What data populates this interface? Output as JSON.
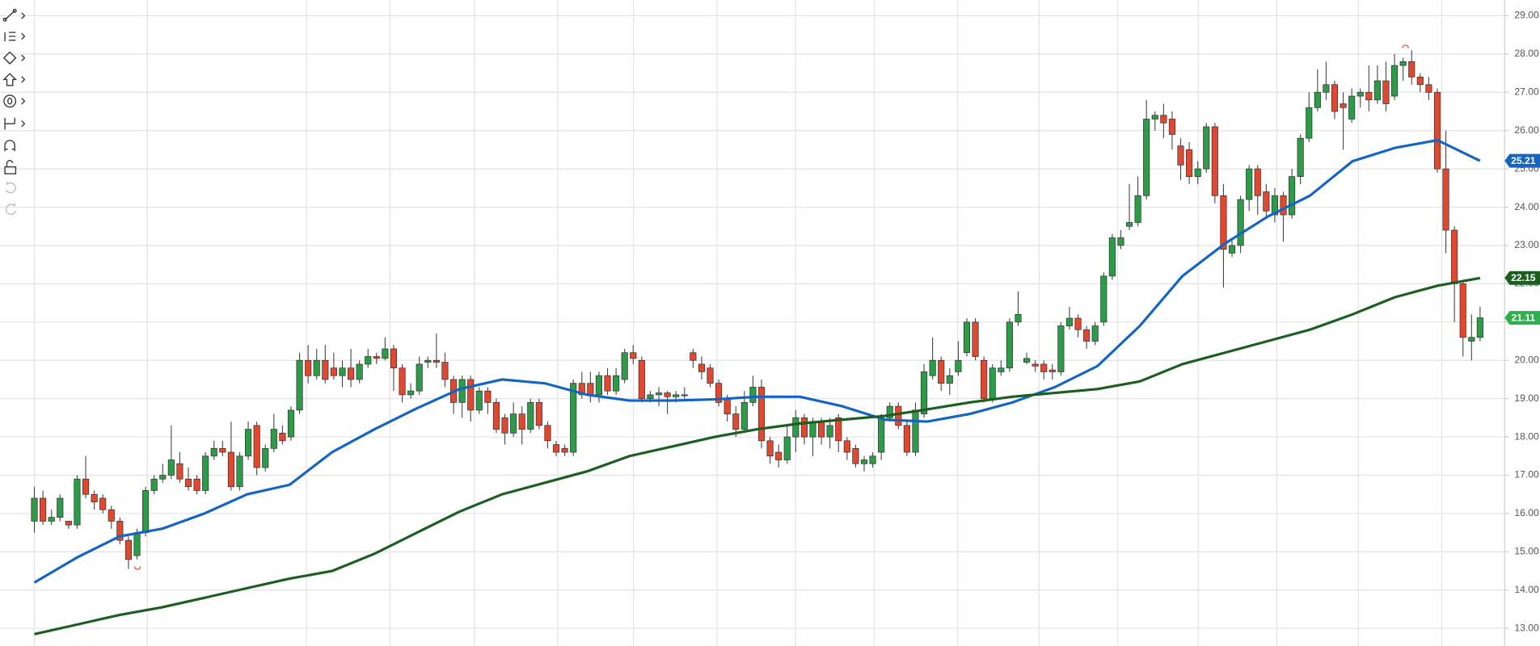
{
  "chart_data": {
    "type": "candlestick",
    "ylim": [
      12.54,
      29.41
    ],
    "yticks": [
      {
        "value": 13,
        "label": "13.00"
      },
      {
        "value": 14,
        "label": "14.00"
      },
      {
        "value": 15,
        "label": "15.00"
      },
      {
        "value": 16,
        "label": "16.00"
      },
      {
        "value": 17,
        "label": "17.00"
      },
      {
        "value": 18,
        "label": "18.00"
      },
      {
        "value": 19,
        "label": "19.00"
      },
      {
        "value": 20,
        "label": "20.00"
      },
      {
        "value": 21,
        "label": "21.00"
      },
      {
        "value": 22,
        "label": "22.00"
      },
      {
        "value": 23,
        "label": "23.00"
      },
      {
        "value": 24,
        "label": "24.00"
      },
      {
        "value": 25,
        "label": "25.00"
      },
      {
        "value": 26,
        "label": "26.00"
      },
      {
        "value": 27,
        "label": "27.00"
      },
      {
        "value": 28,
        "label": "28.00"
      },
      {
        "value": 29,
        "label": "29.00"
      }
    ],
    "grid": true,
    "ohlc": {
      "up_color": "#2c9c48",
      "down_color": "#e2472f",
      "last_color": "#2fb04f",
      "open": [
        15.8,
        16.4,
        15.8,
        15.9,
        15.8,
        15.7,
        16.9,
        16.5,
        16.4,
        16.1,
        15.8,
        15.3,
        14.9,
        15.5,
        16.6,
        16.9,
        17.0,
        17.3,
        16.9,
        16.9,
        16.6,
        17.5,
        17.7,
        17.6,
        16.7,
        17.5,
        18.3,
        17.2,
        17.7,
        18.1,
        18.0,
        18.7,
        20.0,
        19.6,
        20.0,
        19.8,
        19.6,
        19.8,
        19.5,
        19.9,
        20.1,
        20.05,
        20.3,
        19.8,
        19.1,
        19.2,
        19.95,
        20.0,
        19.95,
        19.5,
        18.9,
        19.5,
        18.7,
        19.2,
        18.9,
        18.5,
        18.1,
        18.6,
        18.2,
        18.9,
        18.3,
        17.8,
        17.7,
        17.6,
        19.4,
        19.4,
        19.1,
        19.6,
        19.2,
        19.5,
        20.2,
        20.0,
        19.0,
        19.1,
        19.15,
        19.05,
        19.1,
        20.2,
        19.9,
        19.8,
        19.4,
        19.0,
        18.6,
        18.2,
        18.9,
        19.3,
        17.9,
        17.6,
        17.4,
        18.0,
        18.5,
        18.0,
        18.4,
        18.0,
        18.5,
        17.9,
        17.7,
        17.3,
        17.3,
        17.6,
        18.5,
        18.8,
        18.3,
        17.6,
        18.6,
        19.6,
        20.0,
        19.4,
        19.7,
        20.2,
        21.0,
        20.0,
        19.0,
        19.7,
        19.8,
        21.0,
        19.95,
        19.9,
        19.9,
        19.75,
        19.7,
        20.9,
        21.1,
        20.8,
        20.5,
        21.0,
        22.2,
        23.0,
        23.5,
        23.6,
        24.3,
        26.3,
        26.4,
        26.3,
        25.6,
        25.5,
        24.8,
        25.0,
        26.1,
        24.3,
        22.8,
        23.0,
        24.2,
        25.0,
        24.4,
        23.8,
        24.3,
        23.8,
        24.8,
        25.8,
        26.6,
        27.0,
        27.2,
        26.7,
        26.3,
        26.9,
        27.0,
        26.8,
        27.3,
        26.9,
        27.7,
        27.8,
        27.4,
        27.2,
        27.0,
        25.0,
        23.4,
        22.0,
        20.5,
        20.6
      ],
      "high": [
        16.7,
        16.6,
        16.1,
        16.5,
        15.8,
        17.0,
        17.5,
        16.6,
        16.5,
        16.2,
        15.9,
        15.4,
        15.6,
        16.7,
        17.0,
        17.3,
        18.3,
        17.6,
        17.2,
        17.0,
        17.6,
        17.9,
        17.9,
        18.4,
        17.6,
        18.4,
        18.4,
        17.8,
        18.6,
        18.3,
        18.8,
        20.2,
        20.4,
        20.3,
        20.4,
        20.2,
        20.0,
        20.3,
        20.0,
        20.3,
        20.2,
        20.6,
        20.4,
        19.9,
        19.4,
        20.1,
        20.1,
        20.7,
        20.2,
        19.6,
        19.6,
        19.6,
        19.3,
        19.3,
        19.0,
        18.6,
        18.9,
        18.8,
        19.0,
        19.0,
        18.4,
        17.9,
        17.8,
        19.5,
        19.7,
        19.7,
        19.7,
        19.8,
        19.8,
        20.3,
        20.4,
        20.1,
        19.2,
        19.3,
        19.2,
        19.2,
        19.3,
        20.3,
        20.1,
        19.9,
        19.5,
        19.1,
        18.8,
        19.2,
        19.6,
        19.5,
        18.0,
        17.8,
        18.3,
        18.7,
        18.6,
        18.5,
        18.5,
        18.5,
        18.6,
        18.0,
        17.8,
        17.5,
        17.6,
        18.6,
        18.9,
        18.9,
        18.4,
        18.9,
        19.9,
        20.6,
        20.1,
        19.8,
        20.5,
        21.1,
        21.1,
        20.1,
        19.9,
        20.0,
        21.1,
        21.8,
        20.2,
        20.0,
        20.0,
        19.9,
        21.0,
        21.4,
        21.2,
        20.9,
        21.0,
        22.3,
        23.3,
        23.4,
        24.6,
        24.8,
        26.8,
        26.5,
        26.7,
        26.5,
        25.8,
        25.7,
        25.2,
        26.2,
        26.2,
        24.6,
        23.2,
        24.3,
        25.1,
        25.1,
        24.6,
        24.5,
        24.4,
        25.0,
        25.9,
        27.0,
        27.6,
        27.8,
        27.3,
        27.0,
        27.1,
        27.1,
        27.7,
        27.7,
        27.8,
        28.0,
        27.9,
        28.1,
        27.5,
        27.4,
        27.1,
        26.0,
        23.5,
        22.1,
        21.2,
        21.4
      ],
      "low": [
        15.5,
        15.7,
        15.7,
        15.8,
        15.6,
        15.6,
        16.4,
        16.1,
        16.0,
        15.6,
        15.2,
        14.55,
        14.8,
        15.4,
        16.5,
        16.8,
        16.9,
        16.8,
        16.6,
        16.5,
        16.5,
        17.4,
        17.5,
        16.6,
        16.6,
        17.4,
        17.0,
        17.1,
        17.6,
        17.8,
        17.9,
        18.6,
        19.4,
        19.5,
        19.4,
        19.5,
        19.3,
        19.3,
        19.4,
        19.8,
        19.9,
        20.0,
        19.2,
        18.9,
        19.0,
        19.1,
        19.8,
        19.8,
        19.3,
        18.6,
        18.5,
        18.4,
        18.6,
        18.6,
        18.1,
        17.8,
        18.0,
        17.8,
        18.1,
        18.2,
        17.7,
        17.5,
        17.5,
        17.5,
        19.0,
        18.9,
        18.9,
        19.1,
        19.1,
        19.4,
        19.9,
        18.9,
        18.9,
        18.8,
        18.6,
        18.9,
        19.0,
        19.8,
        19.5,
        19.3,
        18.8,
        18.4,
        18.0,
        18.1,
        18.8,
        17.7,
        17.3,
        17.2,
        17.3,
        17.6,
        17.8,
        17.5,
        17.8,
        17.7,
        17.6,
        17.4,
        17.2,
        17.1,
        17.2,
        17.4,
        18.4,
        18.2,
        17.5,
        17.5,
        18.5,
        19.5,
        19.2,
        19.1,
        19.6,
        20.1,
        20.0,
        18.9,
        18.9,
        19.6,
        19.7,
        20.9,
        19.9,
        19.7,
        19.5,
        19.5,
        19.6,
        20.8,
        20.6,
        20.3,
        20.4,
        20.9,
        22.1,
        22.9,
        23.4,
        23.5,
        24.2,
        26.0,
        25.8,
        25.5,
        24.7,
        24.6,
        24.6,
        24.9,
        24.1,
        21.9,
        22.7,
        22.8,
        23.9,
        23.8,
        23.7,
        23.6,
        23.1,
        23.7,
        24.6,
        25.7,
        26.5,
        26.8,
        26.3,
        25.5,
        26.2,
        26.6,
        26.5,
        26.7,
        26.5,
        26.8,
        27.3,
        27.2,
        27.0,
        26.8,
        24.9,
        22.8,
        21.0,
        20.1,
        20.0,
        20.5
      ],
      "close": [
        16.4,
        15.8,
        15.9,
        16.4,
        15.7,
        16.9,
        16.5,
        16.3,
        16.1,
        15.8,
        15.3,
        14.8,
        15.5,
        16.6,
        16.9,
        17.0,
        17.4,
        16.9,
        16.7,
        16.6,
        17.5,
        17.7,
        17.6,
        16.7,
        17.5,
        18.2,
        17.2,
        17.7,
        18.2,
        17.9,
        18.7,
        20.0,
        19.6,
        20.0,
        19.5,
        19.6,
        19.8,
        19.5,
        19.9,
        20.1,
        20.05,
        20.3,
        19.8,
        19.1,
        19.2,
        19.9,
        20.0,
        19.95,
        19.5,
        18.9,
        19.5,
        18.7,
        19.2,
        18.9,
        18.2,
        18.1,
        18.6,
        18.2,
        18.9,
        18.3,
        17.9,
        17.6,
        17.6,
        19.4,
        19.1,
        19.1,
        19.6,
        19.2,
        19.6,
        20.2,
        20.05,
        19.0,
        19.1,
        19.15,
        19.05,
        19.1,
        19.1,
        20.0,
        19.7,
        19.4,
        18.9,
        18.6,
        18.2,
        18.9,
        19.3,
        17.9,
        17.5,
        17.4,
        18.0,
        18.5,
        18.0,
        18.4,
        18.0,
        18.3,
        17.9,
        17.6,
        17.3,
        17.4,
        17.5,
        18.5,
        18.8,
        18.3,
        17.6,
        18.7,
        19.7,
        20.0,
        19.4,
        19.6,
        20.0,
        21.0,
        20.1,
        19.0,
        19.8,
        19.8,
        21.0,
        21.2,
        20.05,
        19.85,
        19.7,
        19.7,
        20.9,
        21.1,
        20.8,
        20.5,
        20.9,
        22.2,
        23.2,
        23.2,
        23.6,
        24.3,
        26.3,
        26.4,
        26.2,
        25.9,
        25.1,
        24.8,
        25.0,
        26.1,
        24.3,
        22.9,
        23.0,
        24.2,
        25.0,
        24.3,
        23.9,
        24.3,
        23.8,
        24.8,
        25.8,
        26.6,
        27.0,
        27.2,
        26.5,
        26.6,
        26.9,
        27.0,
        26.8,
        27.3,
        26.7,
        27.7,
        27.8,
        27.4,
        27.2,
        27.0,
        25.0,
        23.4,
        22.0,
        20.6,
        20.6,
        21.11
      ]
    },
    "overlays": [
      {
        "color": "#1565c0",
        "values": [
          14.2,
          14.85,
          15.4,
          15.6,
          16.0,
          16.5,
          16.75,
          17.6,
          18.2,
          18.75,
          19.25,
          19.5,
          19.4,
          19.1,
          18.95,
          18.95,
          18.98,
          19.05,
          19.05,
          18.8,
          18.45,
          18.4,
          18.6,
          18.9,
          19.3,
          19.85,
          20.9,
          22.2,
          23.05,
          23.75,
          24.3,
          25.2,
          25.55,
          25.75,
          25.21
        ]
      },
      {
        "color": "#1b5e20",
        "values": [
          12.85,
          13.1,
          13.35,
          13.55,
          13.8,
          14.05,
          14.3,
          14.5,
          14.95,
          15.5,
          16.05,
          16.5,
          16.8,
          17.1,
          17.5,
          17.75,
          18.0,
          18.2,
          18.35,
          18.45,
          18.55,
          18.72,
          18.9,
          19.05,
          19.15,
          19.25,
          19.45,
          19.9,
          20.2,
          20.5,
          20.8,
          21.2,
          21.65,
          21.95,
          22.15
        ]
      }
    ]
  }
}
